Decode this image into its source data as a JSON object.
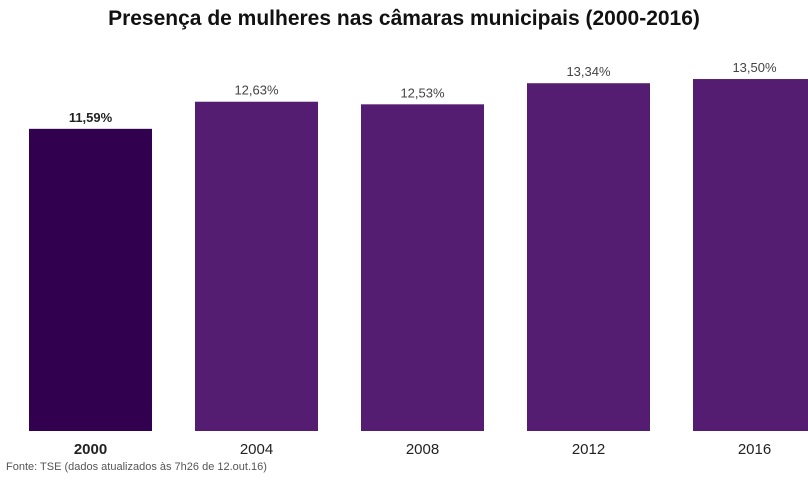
{
  "chart_data": {
    "type": "bar",
    "title": "Presença de mulheres nas câmaras municipais (2000-2016)",
    "categories": [
      "2000",
      "2004",
      "2008",
      "2012",
      "2016"
    ],
    "values": [
      11.59,
      12.63,
      12.53,
      13.34,
      13.5
    ],
    "value_labels": [
      "11,59%",
      "12,63%",
      "12,53%",
      "13,34%",
      "13,50%"
    ],
    "highlighted_category": "2000",
    "ylim": [
      0,
      14
    ],
    "grid": false,
    "xlabel": "",
    "ylabel": "",
    "colors": {
      "highlight": "#31004f",
      "bar": "#551d72"
    },
    "source": "Fonte: TSE (dados atualizados às 7h26 de 12.out.16)"
  }
}
